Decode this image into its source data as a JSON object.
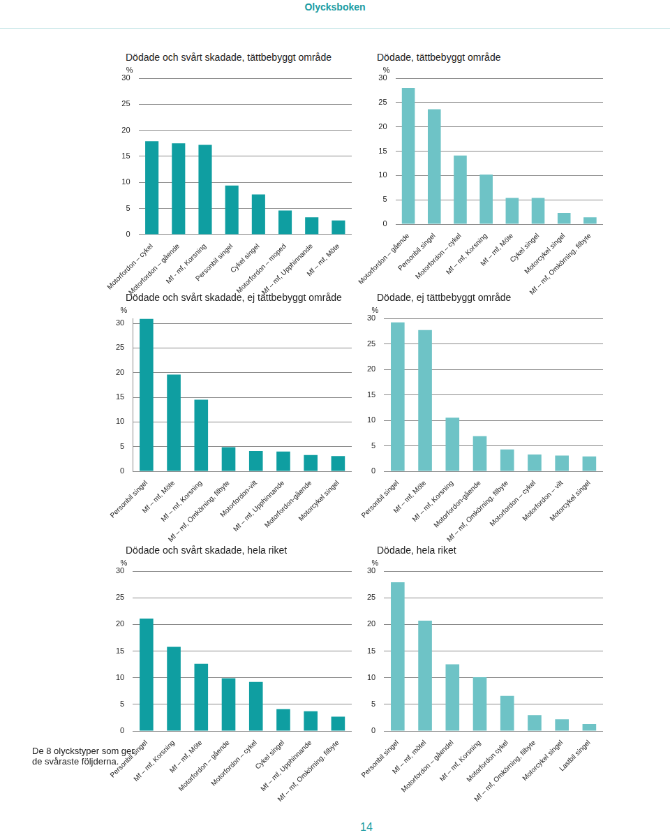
{
  "header": "Olycksboken",
  "chart_data": [
    {
      "type": "bar",
      "title": "Dödade och svårt skadade, tättbebyggt område",
      "ylabel": "%",
      "categories": [
        "Motorfordon – cykel",
        "Motorfordon – gående",
        "Mf - mf, Korsning",
        "Personbil singel",
        "Cykel singel",
        "Motorfordon – moped",
        "Mf – mf, Upphinnande",
        "Mf – mf, Möte"
      ],
      "values": [
        17.9,
        17.5,
        17.2,
        9.4,
        7.7,
        4.6,
        3.3,
        2.7
      ],
      "color": "#0f9ea1",
      "ylim": [
        0,
        30
      ],
      "yticks": [
        0,
        5,
        10,
        15,
        20,
        25,
        30
      ],
      "grid": true
    },
    {
      "type": "bar",
      "title": "Dödade, tättbebyggt område",
      "ylabel": "%",
      "categories": [
        "Motorfordon – gående",
        "Personbil singel",
        "Motorfordon – cykel",
        "Mf – mf, Korsning",
        "Mf – mf, Möte",
        "Cykel singel",
        "Motorcykel singel",
        "Mf – mf, Omkörning, filbyte"
      ],
      "values": [
        28.0,
        23.6,
        14.1,
        10.2,
        5.4,
        5.4,
        2.3,
        1.4
      ],
      "color": "#6ec3c6",
      "ylim": [
        0,
        30
      ],
      "yticks": [
        0,
        5,
        10,
        15,
        20,
        25,
        30
      ],
      "grid": true
    },
    {
      "type": "bar",
      "title": "Dödade och svårt skadade, ej tättbebyggt område",
      "ylabel": "%",
      "categories": [
        "Personbil singel",
        "Mf – mf, Möte",
        "Mf – mf, Korsning",
        "Mf – mf, Omkörning, filbyte",
        "Motorfordon-vilt",
        "Mf – mf, Upphinnande",
        "Motorfordon-gående",
        "Motorcykel singel"
      ],
      "values": [
        30.9,
        19.6,
        14.5,
        4.9,
        4.1,
        4.0,
        3.3,
        3.1
      ],
      "color": "#0f9ea1",
      "ylim": [
        0,
        31
      ],
      "yticks": [
        0,
        5,
        10,
        15,
        20,
        25,
        30
      ],
      "grid": true
    },
    {
      "type": "bar",
      "title": "Dödade, ej tättbebyggt område",
      "ylabel": "%",
      "categories": [
        "Personbil singel",
        "Mf – mf, Möte",
        "Mf – mf, Korsning",
        "Motorfordon-gående",
        "Mf – mf, Omkörning, filbyte",
        "Motorfordon – cykel",
        "Motorfordon – vilt",
        "Motorcykel singel"
      ],
      "values": [
        29.2,
        27.7,
        10.5,
        6.9,
        4.3,
        3.3,
        3.1,
        2.9
      ],
      "color": "#6ec3c6",
      "ylim": [
        0,
        30
      ],
      "yticks": [
        0,
        5,
        10,
        15,
        20,
        25,
        30
      ],
      "grid": true
    },
    {
      "type": "bar",
      "title": "Dödade och svårt skadade, hela riket",
      "ylabel": "%",
      "categories": [
        "Personbil singel",
        "Mf – mf, Korsning",
        "Mf – mf, Möte",
        "Motorfordon – gående",
        "Motorfordon – cykel",
        "Cykel singel",
        "Mf – mf, Upphinnande",
        "Mf – mf, Omkörning, filbyte"
      ],
      "values": [
        21.1,
        15.8,
        12.6,
        9.9,
        9.2,
        4.1,
        3.7,
        2.7
      ],
      "color": "#0f9ea1",
      "ylim": [
        0,
        30
      ],
      "yticks": [
        0,
        5,
        10,
        15,
        20,
        25,
        30
      ],
      "grid": true
    },
    {
      "type": "bar",
      "title": "Dödade, hela riket",
      "ylabel": "%",
      "categories": [
        "Personbil singel",
        "Mf – mf, mötel",
        "Motorfordon – gåendel",
        "Mf – mf, Korsning",
        "Motorfordon cykel",
        "Mf – mf, Omkörning, filbyte",
        "Motorcykel singel",
        "Lastbil singel"
      ],
      "values": [
        27.9,
        20.7,
        12.5,
        10.1,
        6.6,
        3.0,
        2.2,
        1.3
      ],
      "color": "#6ec3c6",
      "ylim": [
        0,
        30
      ],
      "yticks": [
        0,
        5,
        10,
        15,
        20,
        25,
        30
      ],
      "grid": true
    }
  ],
  "side_note": "De 8 olyckstyper som ger de svåraste följderna.",
  "page_number": "14"
}
